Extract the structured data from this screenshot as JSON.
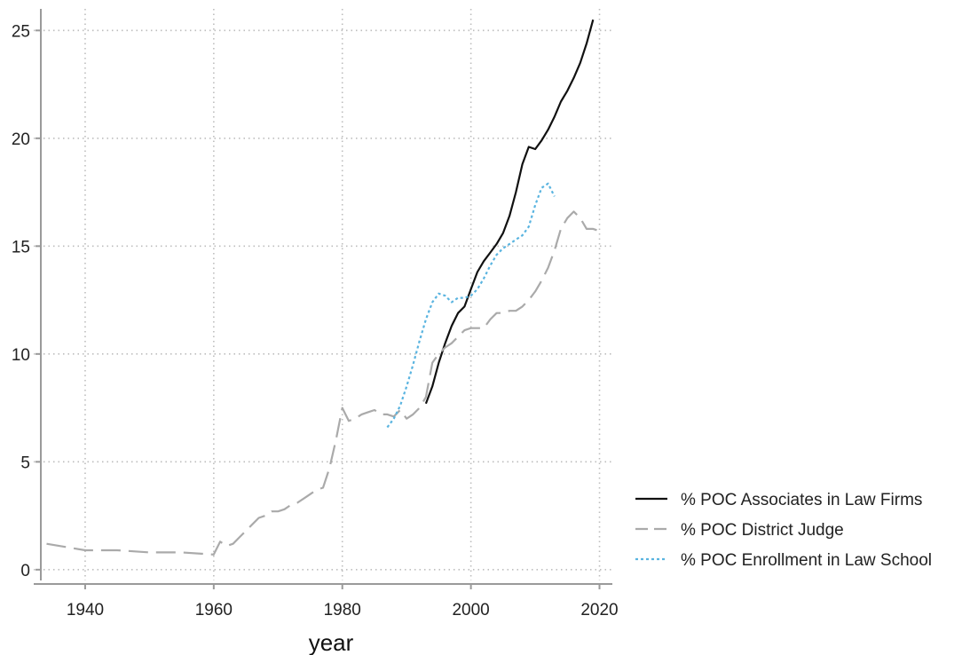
{
  "chart_data": {
    "type": "line",
    "title": "",
    "xlabel": "year",
    "ylabel": "",
    "xlim": [
      1932,
      2022
    ],
    "ylim": [
      -0.5,
      26
    ],
    "x_ticks": [
      1940,
      1960,
      1980,
      2000,
      2020
    ],
    "y_ticks": [
      0,
      5,
      10,
      15,
      20,
      25
    ],
    "x_tick_labels": [
      "1940",
      "1960",
      "1980",
      "2000",
      "2020"
    ],
    "y_tick_labels": [
      "0",
      "5",
      "10",
      "15",
      "20",
      "25"
    ],
    "grid": true,
    "legend_position": "right-bottom",
    "series": [
      {
        "name": "% POC Associates in Law Firms",
        "color": "#111111",
        "style": "solid",
        "points": [
          [
            1993,
            7.7
          ],
          [
            1994,
            8.5
          ],
          [
            1995,
            9.6
          ],
          [
            1996,
            10.5
          ],
          [
            1997,
            11.3
          ],
          [
            1998,
            11.9
          ],
          [
            1999,
            12.2
          ],
          [
            2000,
            13.0
          ],
          [
            2001,
            13.8
          ],
          [
            2002,
            14.3
          ],
          [
            2003,
            14.7
          ],
          [
            2004,
            15.1
          ],
          [
            2005,
            15.6
          ],
          [
            2006,
            16.4
          ],
          [
            2007,
            17.5
          ],
          [
            2008,
            18.8
          ],
          [
            2009,
            19.6
          ],
          [
            2010,
            19.5
          ],
          [
            2011,
            19.9
          ],
          [
            2012,
            20.4
          ],
          [
            2013,
            21.0
          ],
          [
            2014,
            21.7
          ],
          [
            2015,
            22.2
          ],
          [
            2016,
            22.8
          ],
          [
            2017,
            23.5
          ],
          [
            2018,
            24.4
          ],
          [
            2019,
            25.5
          ]
        ]
      },
      {
        "name": "% POC District Judge",
        "color": "#aaaaaa",
        "style": "dashed",
        "points": [
          [
            1934,
            1.2
          ],
          [
            1940,
            0.9
          ],
          [
            1945,
            0.9
          ],
          [
            1950,
            0.8
          ],
          [
            1955,
            0.8
          ],
          [
            1960,
            0.7
          ],
          [
            1961,
            1.3
          ],
          [
            1962,
            1.1
          ],
          [
            1963,
            1.2
          ],
          [
            1964,
            1.5
          ],
          [
            1965,
            1.8
          ],
          [
            1966,
            2.1
          ],
          [
            1967,
            2.4
          ],
          [
            1968,
            2.5
          ],
          [
            1969,
            2.7
          ],
          [
            1970,
            2.7
          ],
          [
            1971,
            2.8
          ],
          [
            1972,
            3.0
          ],
          [
            1973,
            3.1
          ],
          [
            1974,
            3.3
          ],
          [
            1975,
            3.5
          ],
          [
            1976,
            3.7
          ],
          [
            1977,
            3.8
          ],
          [
            1978,
            4.7
          ],
          [
            1979,
            6.0
          ],
          [
            1980,
            7.5
          ],
          [
            1981,
            6.9
          ],
          [
            1982,
            7.0
          ],
          [
            1983,
            7.2
          ],
          [
            1984,
            7.3
          ],
          [
            1985,
            7.4
          ],
          [
            1986,
            7.2
          ],
          [
            1987,
            7.2
          ],
          [
            1988,
            7.1
          ],
          [
            1989,
            7.4
          ],
          [
            1990,
            7.0
          ],
          [
            1991,
            7.2
          ],
          [
            1992,
            7.5
          ],
          [
            1993,
            8.0
          ],
          [
            1994,
            9.6
          ],
          [
            1995,
            10.0
          ],
          [
            1996,
            10.3
          ],
          [
            1997,
            10.5
          ],
          [
            1998,
            10.8
          ],
          [
            1999,
            11.1
          ],
          [
            2000,
            11.2
          ],
          [
            2001,
            11.2
          ],
          [
            2002,
            11.2
          ],
          [
            2003,
            11.6
          ],
          [
            2004,
            11.9
          ],
          [
            2005,
            11.9
          ],
          [
            2006,
            12.0
          ],
          [
            2007,
            12.0
          ],
          [
            2008,
            12.2
          ],
          [
            2009,
            12.5
          ],
          [
            2010,
            12.9
          ],
          [
            2011,
            13.4
          ],
          [
            2012,
            14.0
          ],
          [
            2013,
            14.8
          ],
          [
            2014,
            15.8
          ],
          [
            2015,
            16.3
          ],
          [
            2016,
            16.6
          ],
          [
            2017,
            16.3
          ],
          [
            2018,
            15.8
          ],
          [
            2019,
            15.8
          ],
          [
            2020,
            15.7
          ]
        ]
      },
      {
        "name": "% POC Enrollment in Law School",
        "color": "#5ab4e0",
        "style": "dotted",
        "points": [
          [
            1987,
            6.6
          ],
          [
            1988,
            7.0
          ],
          [
            1989,
            7.6
          ],
          [
            1990,
            8.5
          ],
          [
            1991,
            9.5
          ],
          [
            1992,
            10.6
          ],
          [
            1993,
            11.6
          ],
          [
            1994,
            12.4
          ],
          [
            1995,
            12.8
          ],
          [
            1996,
            12.7
          ],
          [
            1997,
            12.4
          ],
          [
            1998,
            12.6
          ],
          [
            1999,
            12.6
          ],
          [
            2000,
            12.7
          ],
          [
            2001,
            13.0
          ],
          [
            2002,
            13.5
          ],
          [
            2003,
            14.1
          ],
          [
            2004,
            14.6
          ],
          [
            2005,
            14.9
          ],
          [
            2006,
            15.1
          ],
          [
            2007,
            15.3
          ],
          [
            2008,
            15.5
          ],
          [
            2009,
            15.9
          ],
          [
            2010,
            16.9
          ],
          [
            2011,
            17.7
          ],
          [
            2012,
            17.9
          ],
          [
            2013,
            17.3
          ]
        ]
      }
    ]
  }
}
